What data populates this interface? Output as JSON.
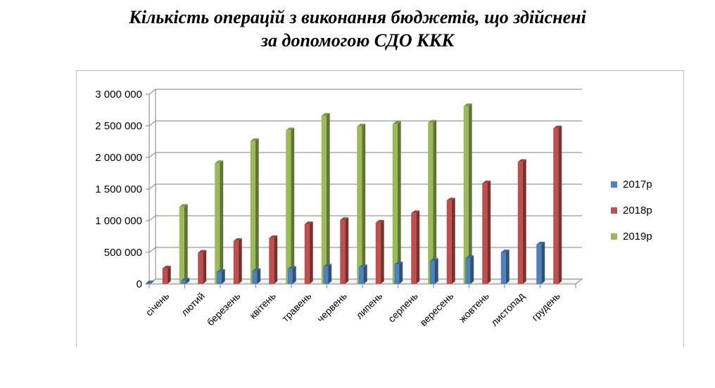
{
  "chart_data": {
    "type": "bar",
    "title": "Кількість операцій з виконання бюджетів, що здійснені за допомогою СДО ККК",
    "title_lines": [
      "Кількість операцій з виконання бюджетів, що здійснені",
      "за допомогою СДО ККК"
    ],
    "categories": [
      "січень",
      "лютий",
      "березень",
      "квітень",
      "травень",
      "червень",
      "липень",
      "серпень",
      "вересень",
      "жовтень",
      "листопад",
      "грудень"
    ],
    "series": [
      {
        "name": "2017р",
        "color": "#4f81bd",
        "values": [
          10000,
          55000,
          190000,
          205000,
          240000,
          275000,
          265000,
          310000,
          365000,
          410000,
          500000,
          625000
        ]
      },
      {
        "name": "2018р",
        "color": "#c0504d",
        "values": [
          245000,
          495000,
          680000,
          725000,
          945000,
          1010000,
          970000,
          1120000,
          1320000,
          1590000,
          1930000,
          2460000
        ]
      },
      {
        "name": "2019р",
        "color": "#9bbb59",
        "values": [
          1220000,
          1910000,
          2260000,
          2430000,
          2660000,
          2490000,
          2530000,
          2550000,
          2810000,
          null,
          null,
          null
        ]
      }
    ],
    "y_ticks": [
      "0",
      "500 000",
      "1 000 000",
      "1 500 000",
      "2 000 000",
      "2 500 000",
      "3 000 000"
    ],
    "ylim": [
      0,
      3000000
    ],
    "xlabel": "",
    "ylabel": "",
    "grid": true,
    "legend_position": "right",
    "style": "3d-clustered-column"
  }
}
